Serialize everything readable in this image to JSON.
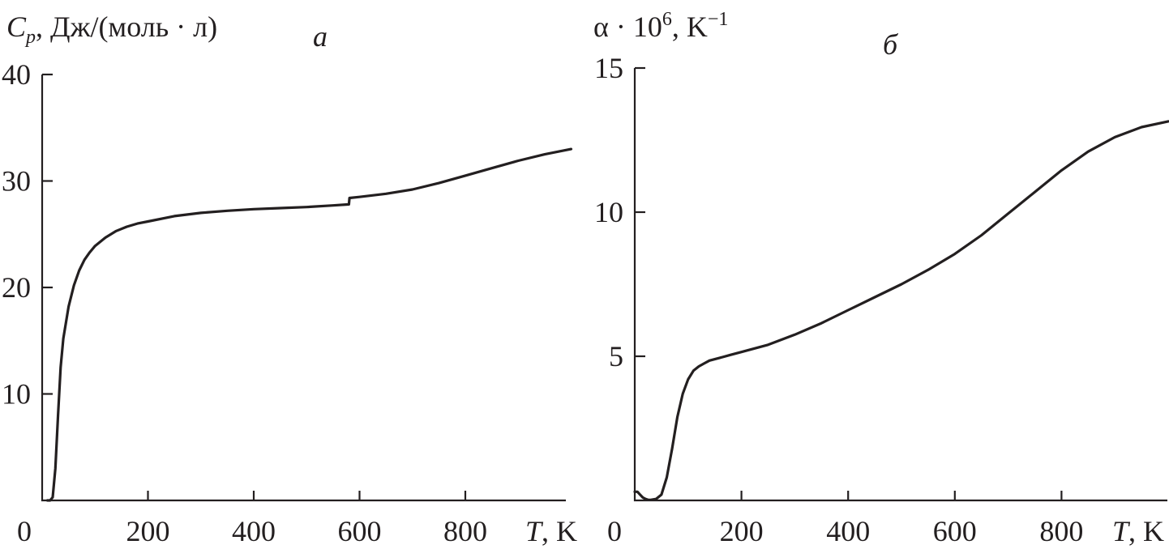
{
  "chart_data": [
    {
      "type": "line",
      "panel_label": "а",
      "ylabel_parts": {
        "main": "C",
        "sub": "p",
        "rest": ", Дж/(моль · л)"
      },
      "xlabel_parts": {
        "italic": "T",
        "rest": ", K"
      },
      "xlim": [
        0,
        1000
      ],
      "ylim": [
        0,
        40
      ],
      "x_tick_labels": [
        "0",
        "200",
        "400",
        "600",
        "800"
      ],
      "x_ticks": [
        0,
        200,
        400,
        600,
        800
      ],
      "y_tick_labels": [
        "10",
        "20",
        "30",
        "40"
      ],
      "y_ticks": [
        10,
        20,
        30,
        40
      ],
      "grid": false,
      "series": [
        {
          "x": [
            10,
            15,
            20,
            25,
            30,
            35,
            40,
            50,
            60,
            70,
            80,
            90,
            100,
            120,
            140,
            160,
            180,
            200,
            250,
            300,
            350,
            400,
            450,
            500,
            550,
            580,
            581,
            600,
            650,
            700,
            750,
            800,
            850,
            900,
            950,
            1000
          ],
          "y": [
            0,
            0,
            0.3,
            3,
            8,
            12.5,
            15.2,
            18.2,
            20.2,
            21.6,
            22.6,
            23.3,
            23.9,
            24.7,
            25.3,
            25.7,
            26.0,
            26.2,
            26.7,
            27.0,
            27.2,
            27.35,
            27.45,
            27.55,
            27.7,
            27.8,
            28.4,
            28.5,
            28.8,
            29.2,
            29.8,
            30.5,
            31.2,
            31.9,
            32.5,
            33.0
          ]
        }
      ]
    },
    {
      "type": "line",
      "panel_label": "б",
      "ylabel_parts": {
        "main": "α · 10",
        "sup": "6",
        "rest": ", K",
        "sup2": "−1"
      },
      "xlabel_parts": {
        "italic": "T",
        "rest": ", K"
      },
      "xlim": [
        0,
        1000
      ],
      "ylim": [
        0,
        15
      ],
      "x_tick_labels": [
        "0",
        "200",
        "400",
        "600",
        "800"
      ],
      "x_ticks": [
        0,
        200,
        400,
        600,
        800
      ],
      "y_tick_labels": [
        "5",
        "10",
        "15"
      ],
      "y_ticks": [
        5,
        10,
        15
      ],
      "grid": false,
      "series": [
        {
          "x": [
            0,
            5,
            10,
            15,
            20,
            25,
            30,
            40,
            50,
            60,
            70,
            80,
            90,
            100,
            110,
            120,
            130,
            140,
            160,
            180,
            200,
            250,
            300,
            350,
            400,
            450,
            500,
            550,
            600,
            650,
            700,
            750,
            800,
            850,
            900,
            950,
            1000
          ],
          "y": [
            0.3,
            0.3,
            0.2,
            0.1,
            0.05,
            0.02,
            0.02,
            0.05,
            0.2,
            0.8,
            1.8,
            2.9,
            3.7,
            4.2,
            4.5,
            4.65,
            4.75,
            4.85,
            4.95,
            5.05,
            5.15,
            5.4,
            5.75,
            6.15,
            6.6,
            7.05,
            7.5,
            8.0,
            8.55,
            9.2,
            9.95,
            10.7,
            11.45,
            12.1,
            12.6,
            12.95,
            13.15
          ]
        }
      ]
    }
  ]
}
